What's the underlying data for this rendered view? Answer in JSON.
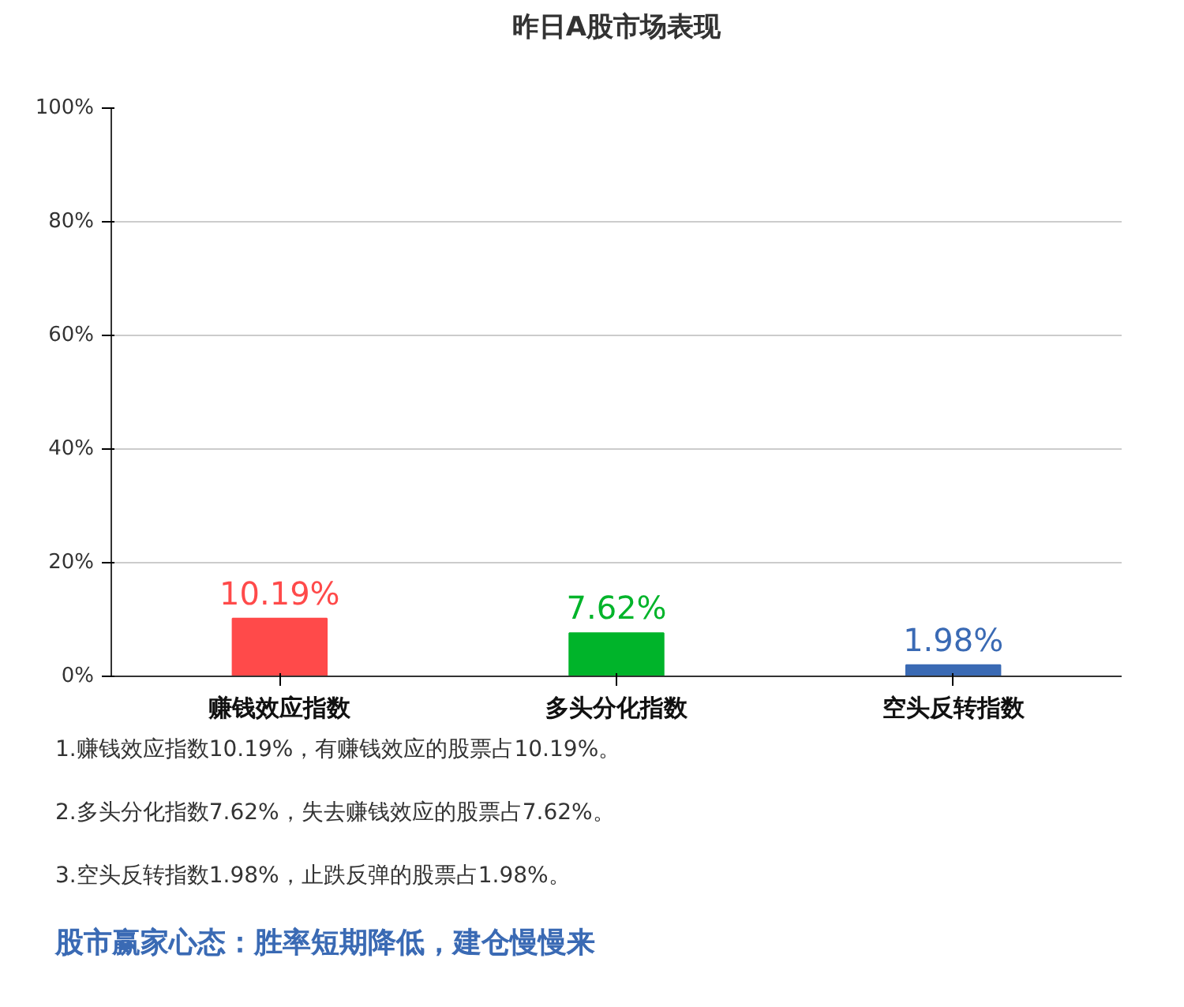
{
  "chart_data": {
    "type": "bar",
    "title": "昨日A股市场表现",
    "categories": [
      "赚钱效应指数",
      "多头分化指数",
      "空头反转指数"
    ],
    "values": [
      10.19,
      7.62,
      1.98
    ],
    "colors": [
      "#ff4a4a",
      "#00b42a",
      "#3a6ab4"
    ],
    "value_labels": [
      "10.19%",
      "7.62%",
      "1.98%"
    ],
    "ylim": [
      0,
      100
    ],
    "yticks": [
      {
        "value": 0,
        "label": "0%"
      },
      {
        "value": 20,
        "label": "20%"
      },
      {
        "value": 40,
        "label": "40%"
      },
      {
        "value": 60,
        "label": "60%"
      },
      {
        "value": 80,
        "label": "80%"
      },
      {
        "value": 100,
        "label": "100%"
      }
    ],
    "grid": "y",
    "annotations": [
      "1.赚钱效应指数10.19%，有赚钱效应的股票占10.19%。",
      "2.多头分化指数7.62%，失去赚钱效应的股票占7.62%。",
      "3.空头反转指数1.98%，止跌反弹的股票占1.98%。",
      "股市赢家心态：胜率短期降低，建仓慢慢来"
    ]
  }
}
